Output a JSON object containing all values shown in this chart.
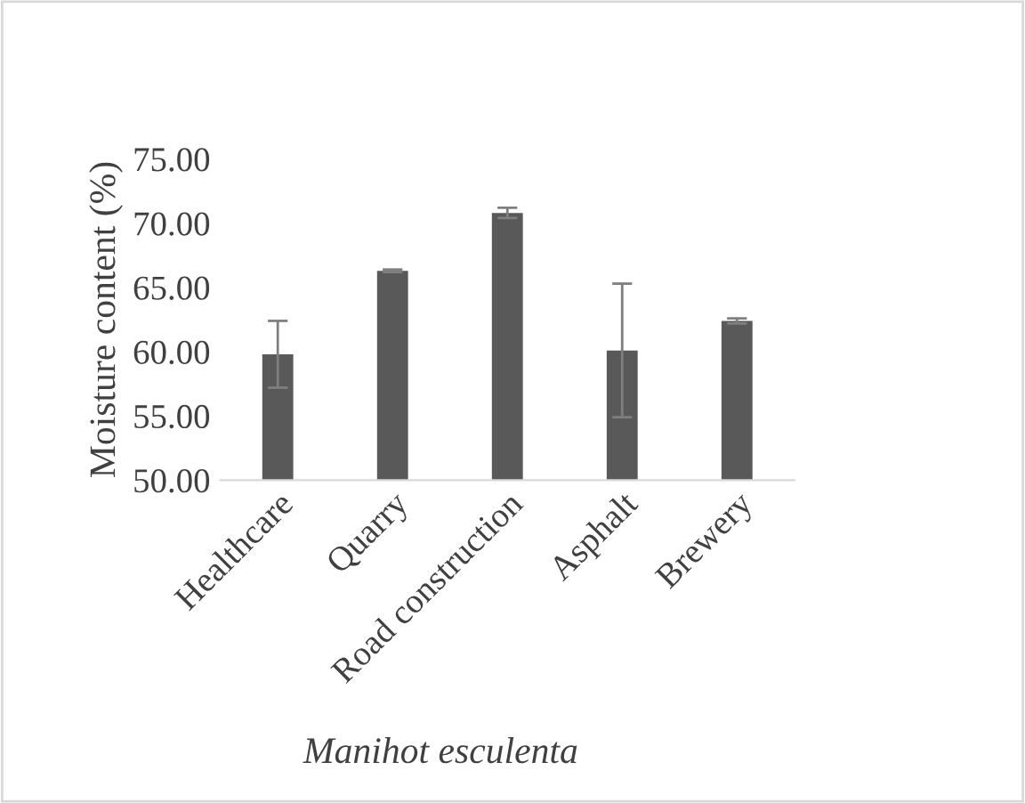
{
  "chart_data": {
    "type": "bar",
    "xlabel": "Manihot esculenta",
    "ylabel": "Moisture content (%)",
    "categories": [
      "Healthcare",
      "Quarry",
      "Road construction",
      "Asphalt",
      "Brewery"
    ],
    "values": [
      59.8,
      66.3,
      70.8,
      60.1,
      62.4
    ],
    "errors": [
      2.6,
      0.1,
      0.4,
      5.2,
      0.2
    ],
    "color": "#595959",
    "ylim": [
      50,
      75
    ],
    "yticks": [
      {
        "value": 50,
        "label": "50.00"
      },
      {
        "value": 55,
        "label": "55.00"
      },
      {
        "value": 60,
        "label": "60.00"
      },
      {
        "value": 65,
        "label": "65.00"
      },
      {
        "value": 70,
        "label": "70.00"
      },
      {
        "value": 75,
        "label": "75.00"
      }
    ],
    "grid": false
  }
}
